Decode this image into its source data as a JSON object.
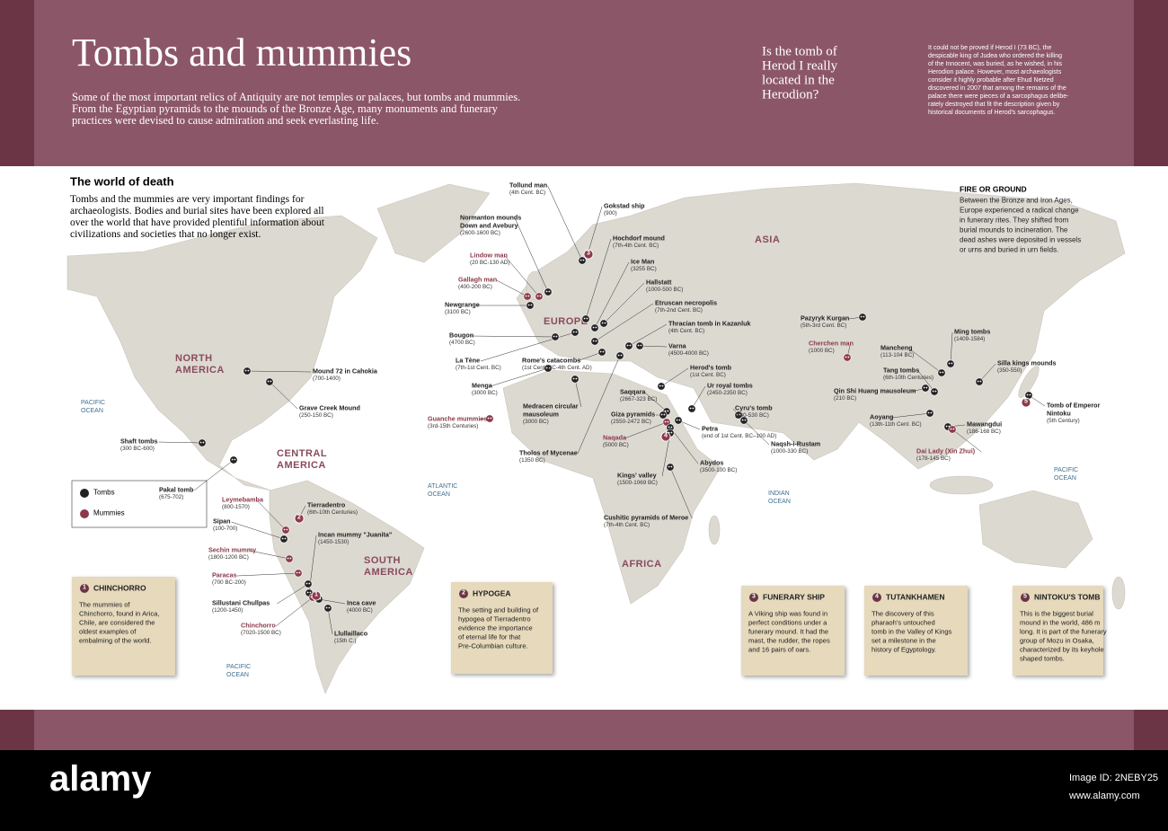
{
  "header": {
    "title": "Tombs and mummies",
    "intro": [
      "Some of the most important relics of Antiquity are not temples or palaces, but tombs and mummies.",
      "From the Egyptian pyramids to the mounds of the Bronze Age, many monuments and funerary",
      "practices were devised to cause admiration and seek everlasting life."
    ],
    "question": [
      "Is the tomb of",
      "Herod I really",
      "located in the",
      "Herodion?"
    ],
    "answer": [
      "It could not be proved if Herod I (73 BC), the",
      "despicable king of Judea who ordered the killing",
      "of the Innocent, was buried, as he wished, in his",
      "Herodion palace. However, most archaeologists",
      "consider it highly probable after Ehud Netzed",
      "discovered in 2007 that among the remains of the",
      "palace there were pieces of a sarcophagus delibe-",
      "rately destroyed that fit the description given by",
      "historical documents of Herod's sarcophagus."
    ]
  },
  "section": {
    "title": "The world of death",
    "intro": [
      "Tombs and the mummies are very important findings for",
      "archaeologists. Bodies and burial sites have been explored all",
      "over the world that have provided plentiful information about",
      "civilizations and societies that no longer exist."
    ]
  },
  "fire_or_ground": {
    "title": "FIRE OR GROUND",
    "text": [
      "Between the Bronze and Iron Ages,",
      "Europe experienced a radical change",
      "in funerary rites. They shifted from",
      "burial mounds to incineration. The",
      "dead ashes were deposited in vessels",
      "or urns and buried in urn fields."
    ]
  },
  "regions": [
    {
      "label": [
        "ASIA"
      ]
    },
    {
      "label": [
        "EUROPE"
      ]
    },
    {
      "label": [
        "NORTH",
        "AMERICA"
      ]
    },
    {
      "label": [
        "CENTRAL",
        "AMERICA"
      ]
    },
    {
      "label": [
        "SOUTH",
        "AMERICA"
      ]
    },
    {
      "label": [
        "AFRICA"
      ]
    }
  ],
  "oceans": [
    {
      "label": [
        "PACIFIC",
        "OCEAN"
      ]
    },
    {
      "label": [
        "ATLANTIC",
        "OCEAN"
      ]
    },
    {
      "label": [
        "INDIAN",
        "OCEAN"
      ]
    },
    {
      "label": [
        "PACIFIC",
        "OCEAN"
      ]
    },
    {
      "label": [
        "PACIFIC",
        "OCEAN"
      ]
    }
  ],
  "legend": {
    "tombs": "Tombs",
    "mummies": "Mummies"
  },
  "sites": [
    {
      "name": "Tollund man",
      "date": "(4th Cent. BC)",
      "color": "#222"
    },
    {
      "name": "Gokstad ship",
      "date": "(900)",
      "color": "#222"
    },
    {
      "name": [
        "Normanton mounds",
        "Down and Avebury"
      ],
      "date": "(2600-1600 BC)",
      "color": "#222"
    },
    {
      "name": "Hochdorf mound",
      "date": "(7th-4th Cent. BC)",
      "color": "#222"
    },
    {
      "name": "Lindow man",
      "date": "(20 BC-130 AD)",
      "color": "#8b3a4a"
    },
    {
      "name": "Ice Man",
      "date": "(3255 BC)",
      "color": "#222"
    },
    {
      "name": "Gallagh man",
      "date": "(400-200 BC)",
      "color": "#8b3a4a"
    },
    {
      "name": "Hallstatt",
      "date": "(1000-500 BC)",
      "color": "#222"
    },
    {
      "name": "Newgrange",
      "date": "(3100 BC)",
      "color": "#222"
    },
    {
      "name": "Etruscan necropolis",
      "date": "(7th-2nd Cent. BC)",
      "color": "#222"
    },
    {
      "name": "Thracian tomb in Kazanluk",
      "date": "(4th Cent. BC)",
      "color": "#222"
    },
    {
      "name": "Bougon",
      "date": "(4700 BC)",
      "color": "#222"
    },
    {
      "name": "Varna",
      "date": "(4500-4000 BC)",
      "color": "#222"
    },
    {
      "name": "La Tène",
      "date": "(7th-1st Cent. BC)",
      "color": "#222"
    },
    {
      "name": "Rome's catacombs",
      "date": "(1st Cent. BC-4th Cent. AD)",
      "color": "#222"
    },
    {
      "name": "Herod's tomb",
      "date": "(1st Cent. BC)",
      "color": "#222"
    },
    {
      "name": "Menga",
      "date": "(3000 BC)",
      "color": "#222"
    },
    {
      "name": "Saqqara",
      "date": "(2667-323 BC)",
      "color": "#222"
    },
    {
      "name": [
        "Medracen circular",
        "mausoleum"
      ],
      "date": "(3000 BC)",
      "color": "#222"
    },
    {
      "name": "Ur royal tombs",
      "date": "(2450-2350 BC)",
      "color": "#222"
    },
    {
      "name": "Guanche mummies",
      "date": "(3rd-15th Centuries)",
      "color": "#8b3a4a"
    },
    {
      "name": "Giza pyramids",
      "date": "(2550-2472 BC)",
      "color": "#222"
    },
    {
      "name": "Cyru's tomb",
      "date": "(540-530 BC)",
      "color": "#222"
    },
    {
      "name": "Naqada",
      "date": "(5000 BC)",
      "color": "#8b3a4a"
    },
    {
      "name": "Petra",
      "date": "(end of 1st Cent. BC–100 AD)",
      "color": "#222"
    },
    {
      "name": "Naqsh-i-Rustam",
      "date": "(1000-330 BC)",
      "color": "#222"
    },
    {
      "name": "Tholos of Mycenae",
      "date": "(1350 BC)",
      "color": "#222"
    },
    {
      "name": "Abydos",
      "date": "(3500-100 BC)",
      "color": "#222"
    },
    {
      "name": "Kings' valley",
      "date": "(1500-1069 BC)",
      "color": "#222"
    },
    {
      "name": "Cushitic pyramids of Meroe",
      "date": "(7th-4th Cent. BC)",
      "color": "#222"
    },
    {
      "name": "Pazyryk Kurgan",
      "date": "(5th-3rd Cent. BC)",
      "color": "#222"
    },
    {
      "name": "Cherchen man",
      "date": "(1000 BC)",
      "color": "#8b3a4a"
    },
    {
      "name": "Mancheng",
      "date": "(113-104 BC)",
      "color": "#222"
    },
    {
      "name": "Ming tombs",
      "date": "(1409-1584)",
      "color": "#222"
    },
    {
      "name": "Tang tombs",
      "date": "(6th-10th Centuries)",
      "color": "#222"
    },
    {
      "name": "Silla kings mounds",
      "date": "(350-550)",
      "color": "#222"
    },
    {
      "name": "Qin Shi Huang mausoleum",
      "date": "(210 BC)",
      "color": "#222"
    },
    {
      "name": "Aoyang",
      "date": "(13th-11th Cent. BC)",
      "color": "#222"
    },
    {
      "name": "Mawangdui",
      "date": "(186-168 BC)",
      "color": "#222"
    },
    {
      "name": [
        "Tomb of Emperor",
        "Nintoku"
      ],
      "date": "(5th Century)",
      "color": "#222"
    },
    {
      "name": "Dai Lady (Xin Zhui)",
      "date": "(178-145 BC)",
      "color": "#8b3a4a"
    },
    {
      "name": "Mound 72 in Cahokia",
      "date": "(700-1400)",
      "color": "#222"
    },
    {
      "name": "Grave Creek Mound",
      "date": "(250-150 BC)",
      "color": "#222"
    },
    {
      "name": "Shaft tombs",
      "date": "(300 BC-600)",
      "color": "#222"
    },
    {
      "name": "Pakal tomb",
      "date": "(675-702)",
      "color": "#222"
    },
    {
      "name": "Leymebamba",
      "date": "(800-1570)",
      "color": "#8b3a4a"
    },
    {
      "name": "Tierradentro",
      "date": "(6th-10th Centuries)",
      "color": "#222"
    },
    {
      "name": "Sipan",
      "date": "(100-700)",
      "color": "#222"
    },
    {
      "name": "Incan mummy \"Juanita\"",
      "date": "(1450-1530)",
      "color": "#222"
    },
    {
      "name": "Sechin mummy",
      "date": "(1800-1200 BC)",
      "color": "#8b3a4a"
    },
    {
      "name": "Paracas",
      "date": "(700 BC-200)",
      "color": "#8b3a4a"
    },
    {
      "name": "Sillustani Chullpas",
      "date": "(1200-1450)",
      "color": "#222"
    },
    {
      "name": "Inca cave",
      "date": "(4000 BC)",
      "color": "#222"
    },
    {
      "name": "Chinchorro",
      "date": "(7020-1500 BC)",
      "color": "#8b3a4a"
    },
    {
      "name": "Llullaillaco",
      "date": "(15th C.)",
      "color": "#222"
    }
  ],
  "info_boxes": [
    {
      "number": "1",
      "title": "CHINCHORRO",
      "text": [
        "The mummies of",
        "Chinchorro, found in Arica,",
        "Chile, are considered the",
        "oldest examples of",
        "embalming of the world."
      ]
    },
    {
      "number": "2",
      "title": "HYPOGEA",
      "text": [
        "The setting and building of",
        "hypogea of Tierradentro",
        "evidence the importance",
        "of eternal life for that",
        "Pre-Columbian culture."
      ]
    },
    {
      "number": "3",
      "title": "FUNERARY SHIP",
      "text": [
        "A Viking ship was found in",
        "perfect conditions under a",
        "funerary mound. It had the",
        "mast, the rudder, the ropes",
        "and 16 pairs of oars."
      ]
    },
    {
      "number": "4",
      "title": "TUTANKHAMEN",
      "text": [
        "The discovery of this",
        "pharaoh's untouched",
        "tomb in the Valley of Kings",
        "set a milestone in the",
        "history of Egyptology."
      ]
    },
    {
      "number": "5",
      "title": "NINTOKU'S TOMB",
      "text": [
        "This is the biggest burial",
        "mound in the world, 486 m",
        "long. It is part of the funerary",
        "group of Mozu in Osaka,",
        "characterized by its keyhole",
        "shaped tombs."
      ]
    }
  ],
  "footer": {
    "logo": "alamy",
    "image_id": "Image ID: 2NEBY25",
    "url": "www.alamy.com"
  }
}
